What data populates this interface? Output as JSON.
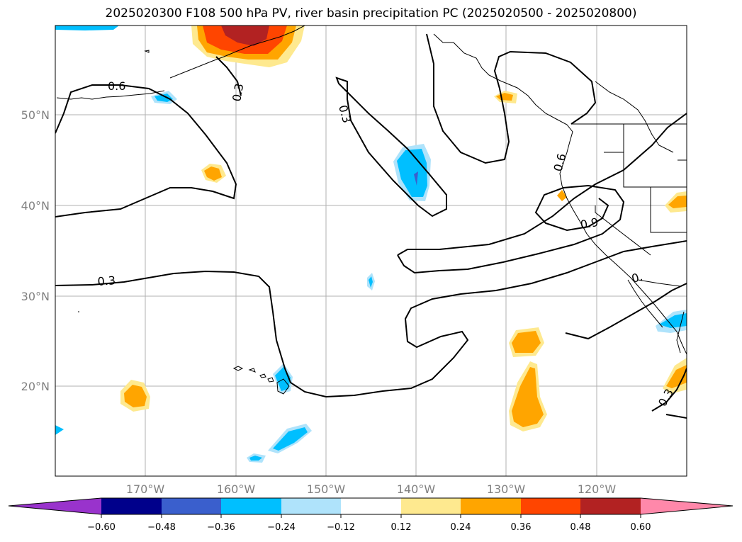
{
  "title": "2025020300 F108 500 hPa PV, river basin precipitation PC (2025020500 - 2025020800)",
  "map": {
    "lat_labels": [
      "50°N",
      "40°N",
      "30°N",
      "20°N"
    ],
    "lon_labels": [
      "170°W",
      "160°W",
      "150°W",
      "140°W",
      "130°W",
      "120°W"
    ],
    "contour_labels": [
      "0.6",
      "0.3",
      "0.3",
      "0.3",
      "0.6",
      "0.9",
      "0.",
      "0.3"
    ]
  },
  "colorbar": {
    "colors": [
      "#9933cc",
      "#00008b",
      "#3a5fcd",
      "#00bfff",
      "#afe3fb",
      "#ffffff",
      "#fee98f",
      "#ffa500",
      "#ff4500",
      "#b22222",
      "#ff88aa"
    ],
    "tick_labels": [
      "−0.60",
      "−0.48",
      "−0.36",
      "−0.24",
      "−0.12",
      "0.12",
      "0.24",
      "0.36",
      "0.48",
      "0.60"
    ]
  }
}
